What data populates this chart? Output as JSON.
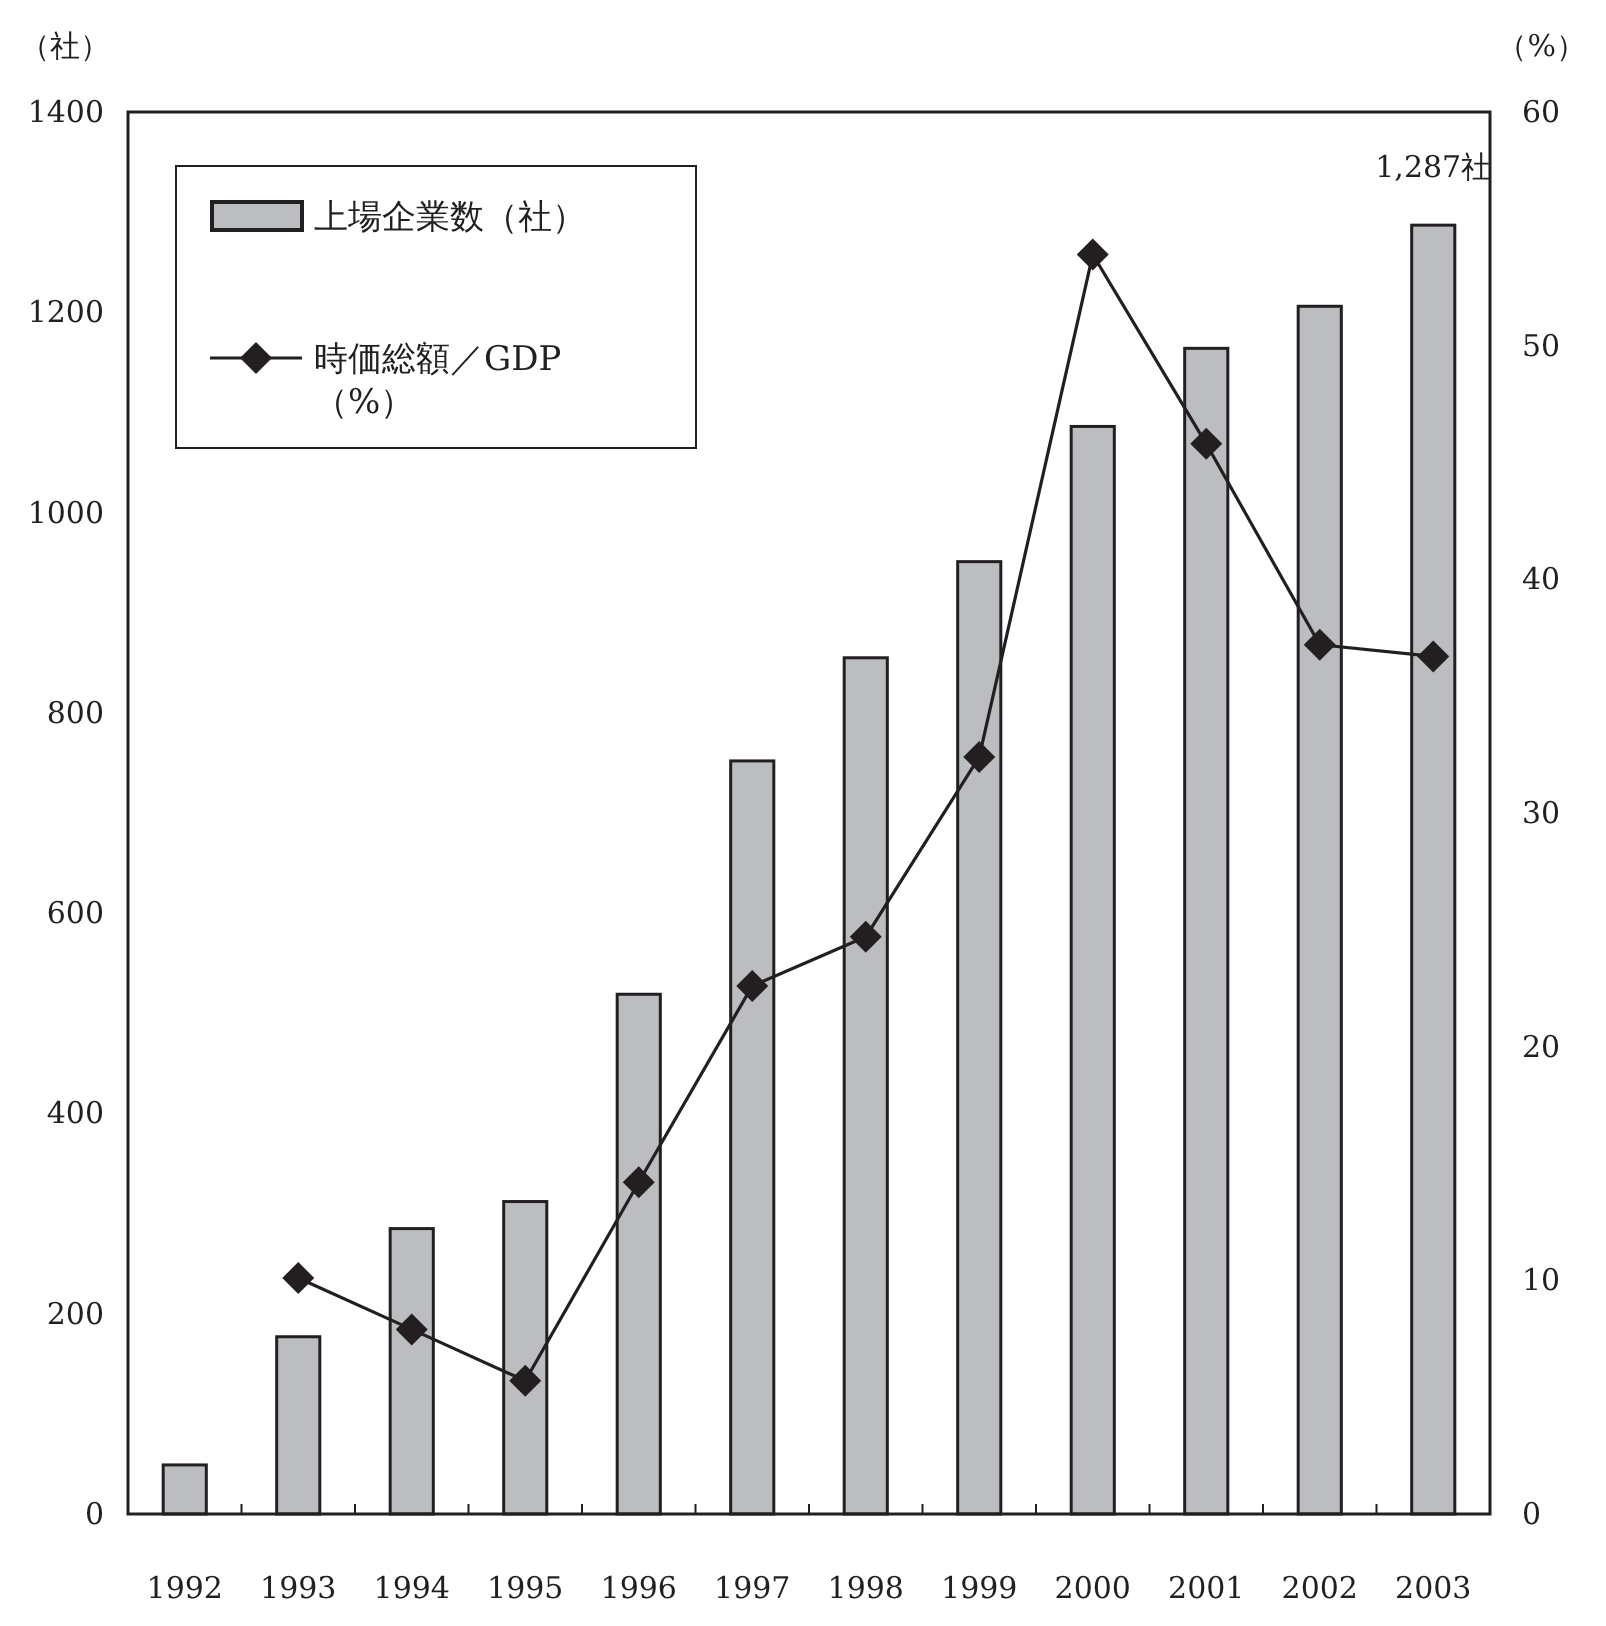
{
  "chart_data": {
    "type": "bar",
    "ylabel": "（社）",
    "y2label": "（%）",
    "categories": [
      "1992",
      "1993",
      "1994",
      "1995",
      "1996",
      "1997",
      "1998",
      "1999",
      "2000",
      "2001",
      "2002",
      "2003"
    ],
    "series": [
      {
        "name": "上場企業数（社）",
        "color": "#bcbdc1",
        "values": [
          49,
          177,
          285,
          312,
          519,
          752,
          855,
          951,
          1086,
          1164,
          1206,
          1287
        ]
      },
      {
        "name": "時価総額／GDP\n（%）",
        "type": "line",
        "axis": "y2",
        "color": "#231f20",
        "marker": "diamond",
        "values": [
          null,
          10.1,
          7.9,
          5.7,
          14.2,
          22.6,
          24.7,
          32.4,
          53.9,
          45.8,
          37.2,
          36.7
        ]
      }
    ],
    "annotations": [
      {
        "text": "1,287社",
        "x": "2003",
        "y": 1287
      }
    ],
    "ylim": [
      0,
      1400
    ],
    "yticks": [
      0,
      200,
      400,
      600,
      800,
      1000,
      1200,
      1400
    ],
    "y2lim": [
      0,
      60
    ],
    "y2ticks": [
      0,
      10,
      20,
      30,
      40,
      50,
      60
    ],
    "grid": false,
    "legend": "top left"
  }
}
